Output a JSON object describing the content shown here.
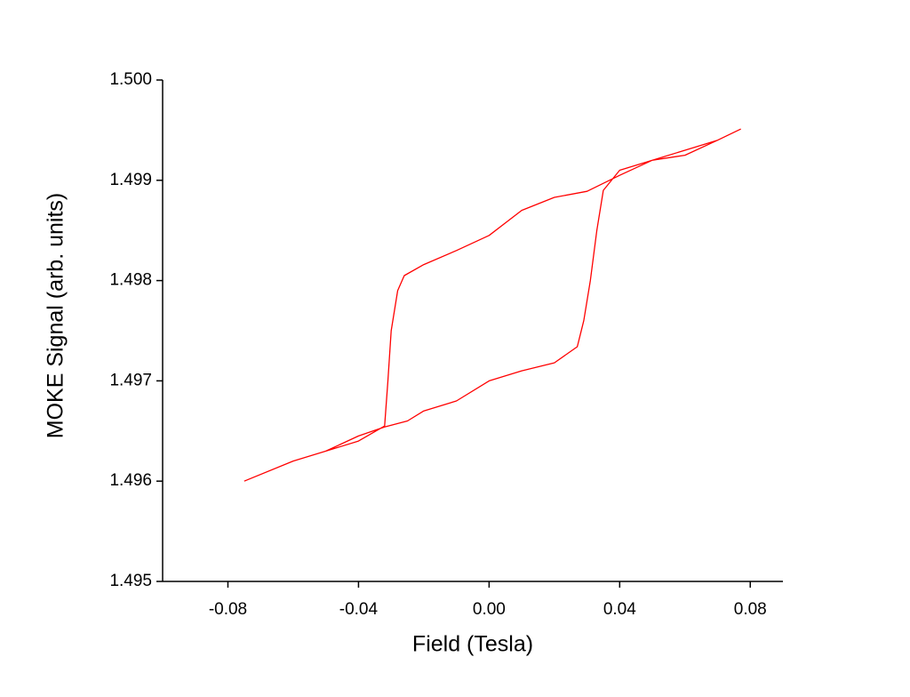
{
  "chart_data": {
    "type": "line",
    "x_label": "Field (Tesla)",
    "y_label": "MOKE Signal (arb. units)",
    "x": [
      -0.075,
      -0.06,
      -0.05,
      -0.04,
      -0.032,
      -0.025,
      -0.02,
      -0.01,
      0,
      0.01,
      0.02,
      0.027,
      0.029,
      0.031,
      0.033,
      0.035,
      0.04,
      0.05,
      0.06,
      0.07,
      0.077,
      0.07,
      0.06,
      0.05,
      0.04,
      0.03,
      0.02,
      0.01,
      0,
      -0.01,
      -0.02,
      -0.026,
      -0.028,
      -0.03,
      -0.031,
      -0.032,
      -0.04,
      -0.05,
      -0.06,
      -0.075
    ],
    "series": [
      {
        "color": "#ff0000",
        "values": [
          1.496,
          1.4962,
          1.4963,
          1.49645,
          1.49654,
          1.4966,
          1.4967,
          1.4968,
          1.497,
          1.4971,
          1.49718,
          1.49734,
          1.4976,
          1.498,
          1.4985,
          1.4989,
          1.4991,
          1.4992,
          1.49925,
          1.4994,
          1.49951,
          1.4994,
          1.4993,
          1.4992,
          1.49905,
          1.49889,
          1.49883,
          1.4987,
          1.49845,
          1.4983,
          1.49816,
          1.49805,
          1.4979,
          1.4975,
          1.497,
          1.49655,
          1.4964,
          1.4963,
          1.4962,
          1.496
        ]
      }
    ],
    "xlim": [
      -0.1,
      0.09
    ],
    "ylim": [
      1.495,
      1.5
    ],
    "xticks": [
      -0.08,
      -0.04,
      {
        "value": 0,
        "label": "0.00"
      },
      0.04,
      0.08
    ],
    "yticks": [
      1.495,
      1.496,
      1.497,
      1.498,
      1.499,
      {
        "value": 1.5,
        "label": "1.500"
      }
    ]
  }
}
